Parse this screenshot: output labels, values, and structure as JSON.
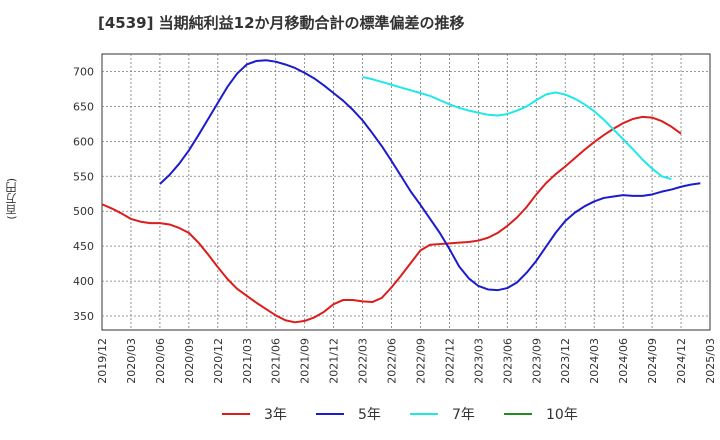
{
  "chart_data": {
    "type": "line",
    "title": "[4539]  当期純利益12か月移動合計の標準偏差の推移",
    "ylabel": "(百万円)",
    "xlabel": "",
    "ylim": [
      330,
      725
    ],
    "yticks": [
      350,
      400,
      450,
      500,
      550,
      600,
      650,
      700
    ],
    "x_ticks": [
      "2019/12",
      "2020/03",
      "2020/06",
      "2020/09",
      "2020/12",
      "2021/03",
      "2021/06",
      "2021/09",
      "2021/12",
      "2022/03",
      "2022/06",
      "2022/09",
      "2022/12",
      "2023/03",
      "2023/06",
      "2023/09",
      "2023/12",
      "2024/03",
      "2024/06",
      "2024/09",
      "2024/12",
      "2025/03"
    ],
    "x_start": "2019/12",
    "grid": true,
    "legend_position": "bottom",
    "series": [
      {
        "name": "3年",
        "color": "#dd1c1c",
        "start_index": 0,
        "values": [
          510,
          504,
          497,
          489,
          485,
          483,
          483,
          481,
          476,
          469,
          455,
          438,
          420,
          403,
          389,
          379,
          369,
          360,
          351,
          344,
          341,
          343,
          348,
          356,
          367,
          373,
          373,
          371,
          370,
          376,
          391,
          408,
          426,
          444,
          452,
          453,
          454,
          455,
          456,
          458,
          462,
          469,
          479,
          491,
          506,
          524,
          540,
          553,
          564,
          576,
          588,
          599,
          609,
          618,
          626,
          632,
          635,
          634,
          629,
          621,
          611
        ]
      },
      {
        "name": "5年",
        "color": "#1c1ccc",
        "start_index": 6,
        "values": [
          539,
          552,
          568,
          587,
          609,
          632,
          655,
          678,
          697,
          710,
          715,
          716,
          714,
          710,
          705,
          698,
          690,
          680,
          669,
          658,
          645,
          630,
          612,
          593,
          572,
          550,
          528,
          509,
          489,
          469,
          446,
          421,
          404,
          393,
          388,
          387,
          390,
          398,
          412,
          429,
          449,
          469,
          486,
          498,
          507,
          514,
          519,
          521,
          523,
          522,
          522,
          524,
          528,
          531,
          535,
          538,
          540
        ]
      },
      {
        "name": "7年",
        "color": "#20e8e8",
        "start_index": 27,
        "values": [
          692,
          689,
          685,
          681,
          677,
          673,
          669,
          665,
          659,
          653,
          648,
          644,
          641,
          638,
          637,
          639,
          644,
          650,
          659,
          667,
          670,
          667,
          661,
          653,
          643,
          631,
          617,
          603,
          589,
          574,
          561,
          550,
          546
        ]
      },
      {
        "name": "10年",
        "color": "#228b22",
        "start_index": 0,
        "values": []
      }
    ]
  }
}
